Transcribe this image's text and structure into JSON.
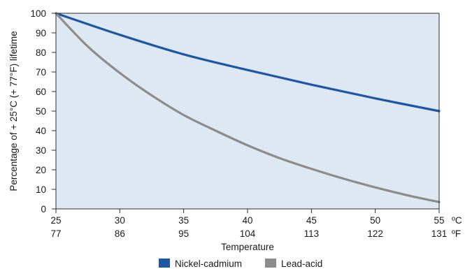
{
  "chart_data": {
    "type": "line",
    "xlabel": "Temperature",
    "ylabel": "Percentage of + 25°C (+ 77°F) lifetime",
    "x_unit_primary": "ºC",
    "x_unit_secondary": "ºF",
    "x_celsius_ticks": [
      "25",
      "30",
      "35",
      "40",
      "45",
      "50",
      "55"
    ],
    "x_fahrenheit_ticks": [
      "77",
      "86",
      "95",
      "104",
      "113",
      "122",
      "131"
    ],
    "y_ticks": [
      "0",
      "10",
      "20",
      "30",
      "40",
      "50",
      "60",
      "70",
      "80",
      "90",
      "100"
    ],
    "xlim": [
      25,
      55
    ],
    "ylim": [
      0,
      100
    ],
    "grid": false,
    "legend_position": "bottom",
    "series": [
      {
        "name": "Nickel-cadmium",
        "color": "#1f56a4",
        "points": [
          [
            25,
            100
          ],
          [
            30,
            89
          ],
          [
            35,
            79
          ],
          [
            40,
            71
          ],
          [
            45,
            63.5
          ],
          [
            50,
            56.5
          ],
          [
            55,
            50
          ]
        ]
      },
      {
        "name": "Lead-acid",
        "color": "#8c8c8c",
        "points": [
          [
            25,
            100
          ],
          [
            27.5,
            83
          ],
          [
            30,
            69.5
          ],
          [
            32.5,
            58
          ],
          [
            35,
            48
          ],
          [
            37.5,
            40
          ],
          [
            40,
            32.5
          ],
          [
            42.5,
            26
          ],
          [
            45,
            20.5
          ],
          [
            47.5,
            15.5
          ],
          [
            50,
            11
          ],
          [
            52.5,
            7
          ],
          [
            55,
            3.5
          ]
        ]
      }
    ],
    "colors": {
      "plot_background": "#dde8f2",
      "axis": "#2b2b2b"
    }
  }
}
